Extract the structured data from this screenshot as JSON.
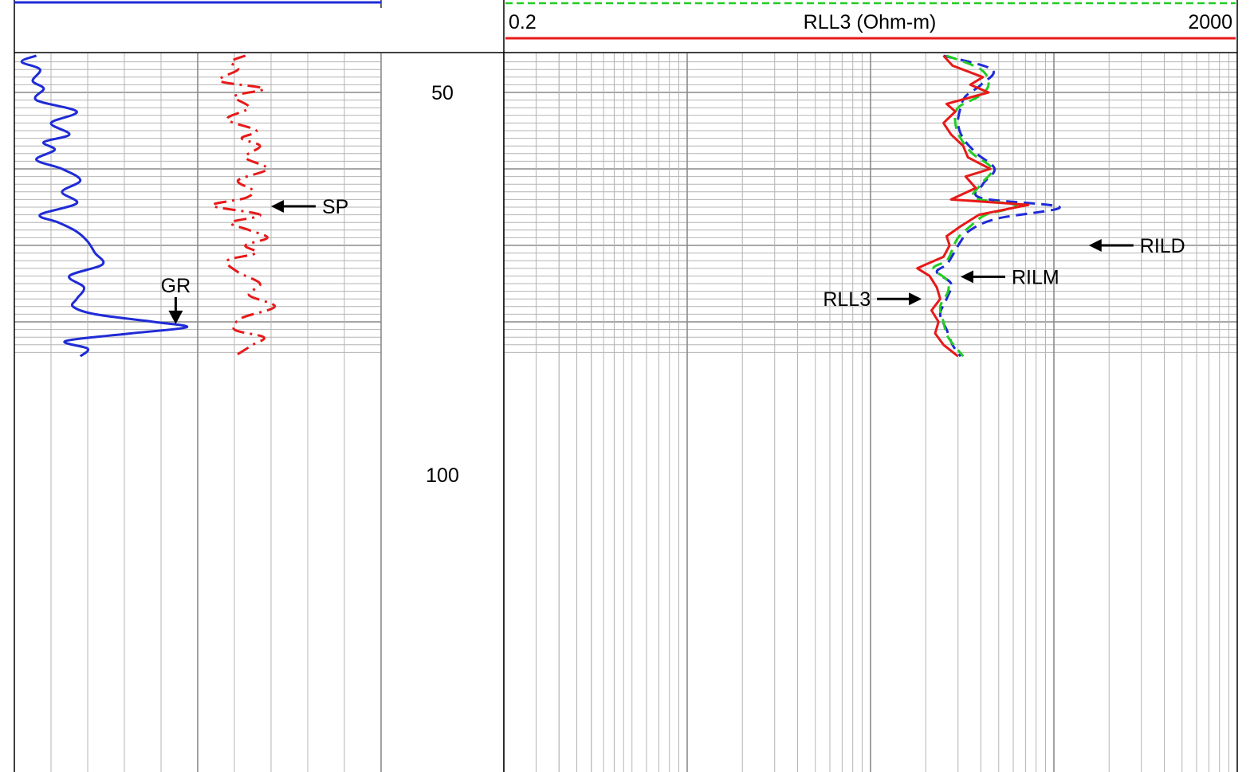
{
  "chart_data": {
    "type": "line",
    "title": "",
    "depth_track": {
      "depth_labels": [
        "50",
        "100"
      ],
      "depth_values": [
        50,
        100
      ],
      "depth_range": [
        45.2,
        84.5
      ]
    },
    "left_track": {
      "xlabel": "",
      "curves": [
        {
          "name": "GR",
          "color": "#1f2bd6",
          "style": "solid",
          "xlim": [
            0,
            100
          ],
          "depth": [
            45.2,
            46.0,
            47.0,
            48.5,
            49.5,
            51.0,
            52.5,
            54.0,
            55.5,
            56.5,
            57.5,
            58.8,
            60.0,
            61.5,
            63.0,
            64.5,
            66.0,
            67.0,
            68.2,
            69.5,
            71.0,
            72.5,
            74.0,
            75.5,
            77.0,
            78.0,
            79.0,
            80.0,
            80.7,
            81.5,
            82.5,
            83.5,
            84.5
          ],
          "values": [
            6,
            2,
            7,
            5,
            8,
            6,
            17,
            10,
            15,
            8,
            11,
            6,
            13,
            18,
            13,
            17,
            7,
            12,
            17,
            20,
            22,
            24,
            15,
            19,
            17,
            16,
            22,
            38,
            47,
            32,
            14,
            20,
            18
          ]
        },
        {
          "name": "SP",
          "color": "#e81919",
          "style": "dashdot",
          "xlim": [
            0,
            100
          ],
          "depth": [
            45.2,
            46.0,
            47.0,
            48.5,
            49.5,
            50.5,
            52.0,
            53.5,
            55.0,
            56.0,
            57.0,
            58.5,
            60.0,
            61.5,
            62.8,
            63.8,
            64.8,
            66.0,
            67.0,
            68.0,
            69.0,
            70.0,
            71.0,
            72.0,
            73.5,
            75.0,
            76.5,
            78.0,
            79.5,
            81.0,
            82.0,
            83.0,
            84.5
          ],
          "values": [
            63,
            59,
            61,
            56,
            68,
            60,
            64,
            58,
            66,
            62,
            67,
            63,
            69,
            61,
            65,
            63,
            54,
            67,
            59,
            64,
            69,
            63,
            66,
            58,
            61,
            67,
            64,
            71,
            62,
            60,
            68,
            65,
            60
          ]
        }
      ]
    },
    "right_track": {
      "xlabel": "RLL3 (Ohm-m)",
      "xmin_label": "0.2",
      "xmax_label": "2000",
      "scale": "log",
      "xlim": [
        0.2,
        2000
      ],
      "curves": [
        {
          "name": "RLL3",
          "color": "#e81919",
          "style": "solid",
          "depth": [
            45.2,
            46.5,
            48.0,
            49.0,
            50.0,
            51.5,
            52.5,
            54.0,
            55.5,
            57.0,
            58.5,
            60.0,
            61.0,
            62.5,
            64.0,
            64.7,
            66.0,
            67.5,
            68.8,
            70.0,
            71.5,
            72.5,
            73.0,
            74.0,
            75.5,
            77.0,
            78.5,
            80.0,
            81.5,
            83.0,
            84.5
          ],
          "values": [
            50,
            56,
            82,
            70,
            88,
            52,
            58,
            50,
            55,
            64,
            68,
            90,
            66,
            75,
            55,
            145,
            78,
            62,
            52,
            54,
            50,
            40,
            36,
            42,
            46,
            48,
            43,
            47,
            45,
            50,
            60
          ]
        },
        {
          "name": "RILM",
          "color": "#22cc22",
          "style": "dashed",
          "depth": [
            45.2,
            47.0,
            49.0,
            50.5,
            52.0,
            54.0,
            56.0,
            58.0,
            60.0,
            62.0,
            63.8,
            64.8,
            66.0,
            67.5,
            69.0,
            70.5,
            72.0,
            73.0,
            74.5,
            76.0,
            78.0,
            80.0,
            82.0,
            84.5
          ],
          "values": [
            52,
            80,
            88,
            78,
            60,
            58,
            62,
            72,
            92,
            80,
            74,
            125,
            85,
            70,
            60,
            56,
            52,
            44,
            52,
            53,
            48,
            50,
            53,
            64
          ]
        },
        {
          "name": "RILD",
          "color": "#1f2bd6",
          "style": "dashed",
          "depth": [
            45.2,
            47.0,
            49.0,
            50.5,
            52.0,
            54.0,
            56.0,
            58.0,
            60.0,
            62.0,
            63.8,
            65.0,
            66.5,
            68.0,
            69.5,
            71.0,
            72.5,
            73.5,
            75.0,
            77.0,
            79.0,
            81.0,
            83.0,
            84.5
          ],
          "values": [
            50,
            92,
            80,
            66,
            62,
            60,
            64,
            76,
            95,
            82,
            80,
            215,
            98,
            70,
            62,
            57,
            52,
            46,
            55,
            52,
            48,
            52,
            56,
            62
          ]
        }
      ]
    },
    "annotations": [
      {
        "label": "GR",
        "track": "left",
        "depth": 80.3,
        "value": 44,
        "arrow": "down"
      },
      {
        "label": "SP",
        "track": "left",
        "depth": 64.9,
        "value": 70,
        "arrow": "left"
      },
      {
        "label": "RILD",
        "track": "right",
        "depth": 70.0,
        "value": 310,
        "arrow": "left"
      },
      {
        "label": "RILM",
        "track": "right",
        "depth": 74.1,
        "value": 62,
        "arrow": "left"
      },
      {
        "label": "RLL3",
        "track": "right",
        "depth": 77.0,
        "value": 38,
        "arrow": "right"
      }
    ]
  }
}
